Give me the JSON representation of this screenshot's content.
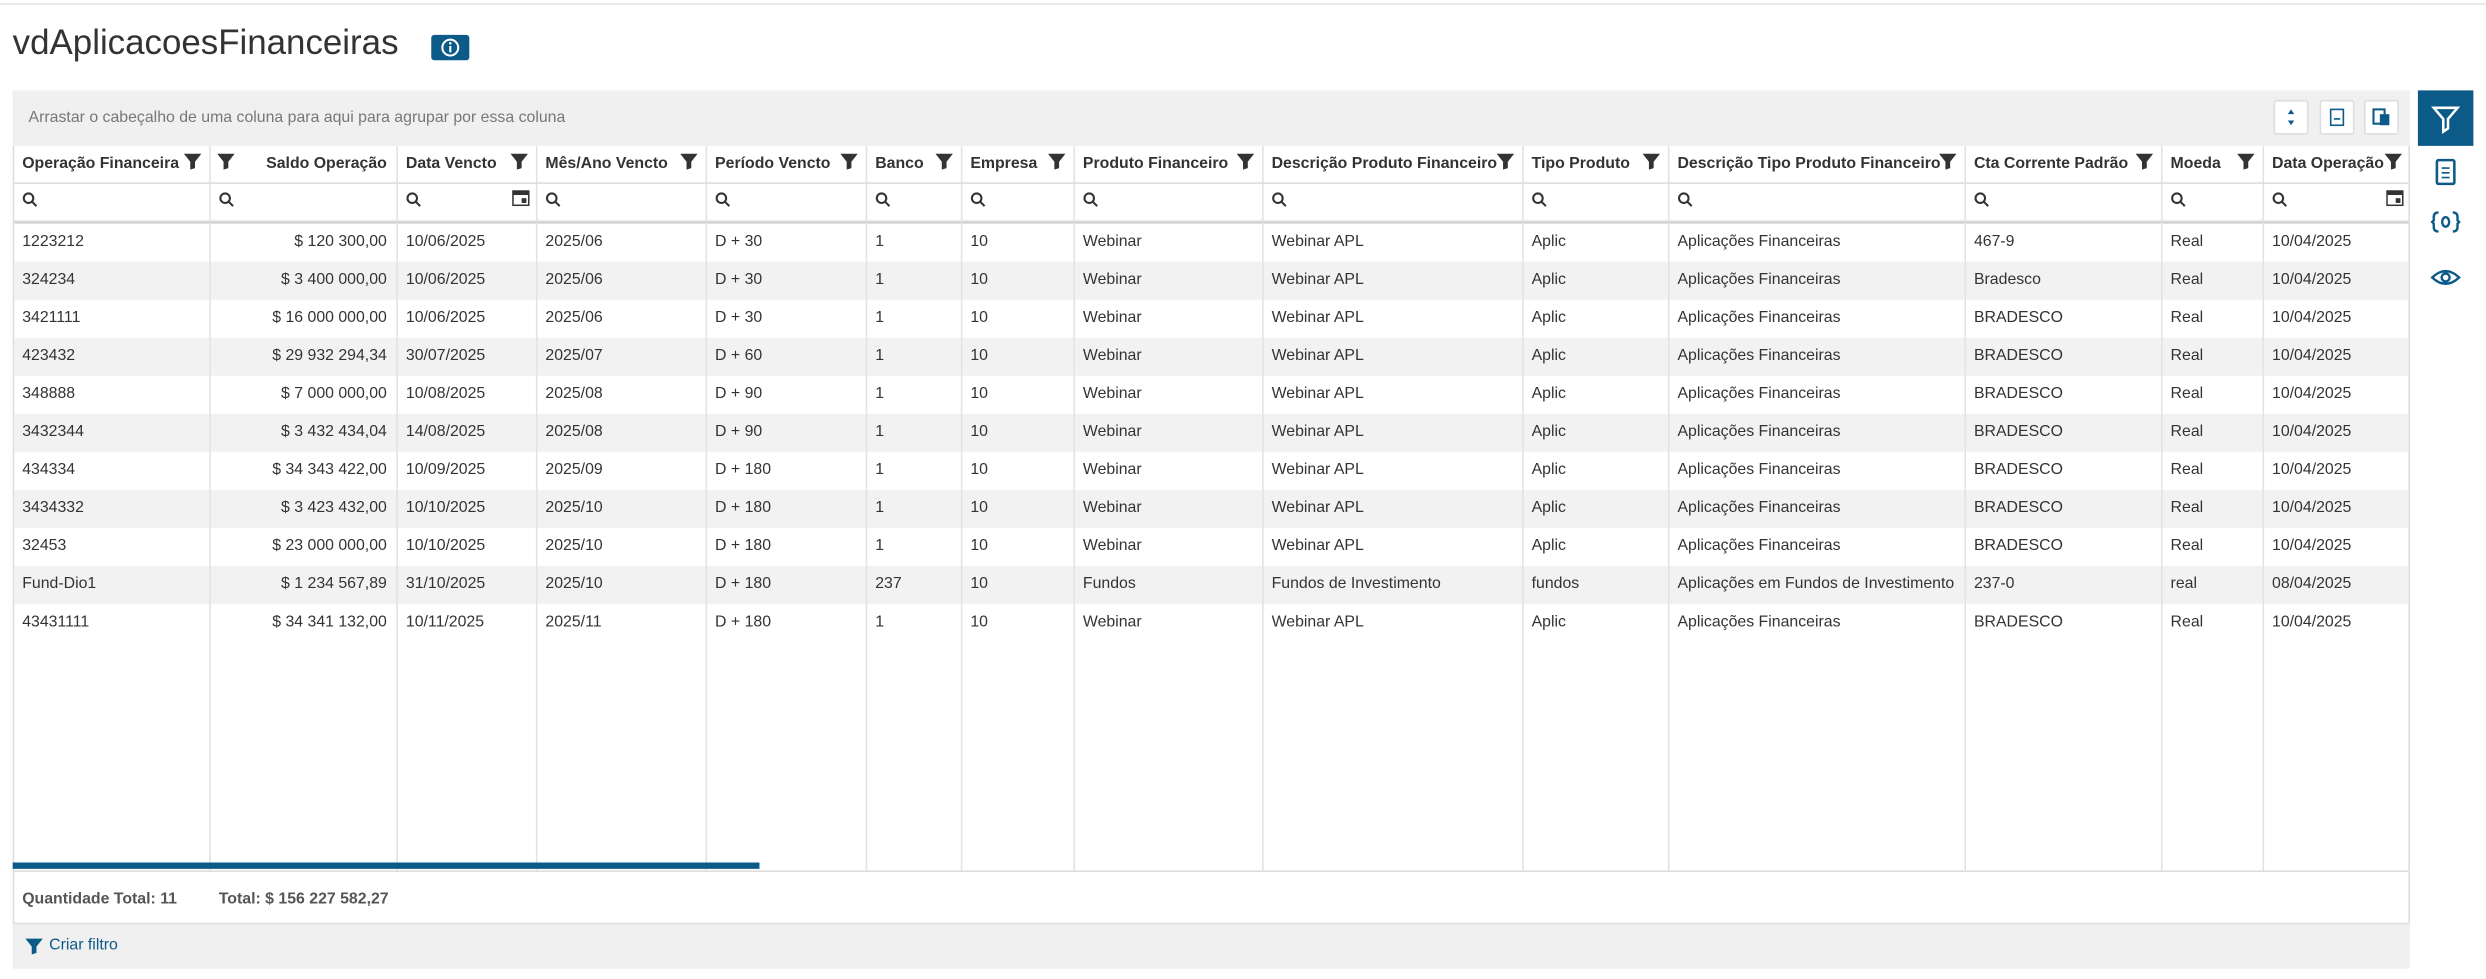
{
  "header": {
    "title": "vdAplicacoesFinanceiras"
  },
  "group_panel": {
    "text": "Arrastar o cabeçalho de uma coluna para aqui para agrupar por essa coluna"
  },
  "table": {
    "columns": [
      "Operação Financeira",
      "Saldo Operação",
      "Data Vencto",
      "Mês/Ano Vencto",
      "Período Vencto",
      "Banco",
      "Empresa",
      "Produto Financeiro",
      "Descrição Produto Financeiro",
      "Tipo Produto",
      "Descrição Tipo Produto Financeiro",
      "Cta Corrente Padrão",
      "Moeda",
      "Data Operação"
    ],
    "rows": [
      [
        "1223212",
        "$ 120 300,00",
        "10/06/2025",
        "2025/06",
        "D + 30",
        "1",
        "10",
        "Webinar",
        "Webinar APL",
        "Aplic",
        "Aplicações Financeiras",
        "467-9",
        "Real",
        "10/04/2025"
      ],
      [
        "324234",
        "$ 3 400 000,00",
        "10/06/2025",
        "2025/06",
        "D + 30",
        "1",
        "10",
        "Webinar",
        "Webinar APL",
        "Aplic",
        "Aplicações Financeiras",
        "Bradesco",
        "Real",
        "10/04/2025"
      ],
      [
        "3421111",
        "$ 16 000 000,00",
        "10/06/2025",
        "2025/06",
        "D + 30",
        "1",
        "10",
        "Webinar",
        "Webinar APL",
        "Aplic",
        "Aplicações Financeiras",
        "BRADESCO",
        "Real",
        "10/04/2025"
      ],
      [
        "423432",
        "$ 29 932 294,34",
        "30/07/2025",
        "2025/07",
        "D + 60",
        "1",
        "10",
        "Webinar",
        "Webinar APL",
        "Aplic",
        "Aplicações Financeiras",
        "BRADESCO",
        "Real",
        "10/04/2025"
      ],
      [
        "348888",
        "$ 7 000 000,00",
        "10/08/2025",
        "2025/08",
        "D + 90",
        "1",
        "10",
        "Webinar",
        "Webinar APL",
        "Aplic",
        "Aplicações Financeiras",
        "BRADESCO",
        "Real",
        "10/04/2025"
      ],
      [
        "3432344",
        "$ 3 432 434,04",
        "14/08/2025",
        "2025/08",
        "D + 90",
        "1",
        "10",
        "Webinar",
        "Webinar APL",
        "Aplic",
        "Aplicações Financeiras",
        "BRADESCO",
        "Real",
        "10/04/2025"
      ],
      [
        "434334",
        "$ 34 343 422,00",
        "10/09/2025",
        "2025/09",
        "D + 180",
        "1",
        "10",
        "Webinar",
        "Webinar APL",
        "Aplic",
        "Aplicações Financeiras",
        "BRADESCO",
        "Real",
        "10/04/2025"
      ],
      [
        "3434332",
        "$ 3 423 432,00",
        "10/10/2025",
        "2025/10",
        "D + 180",
        "1",
        "10",
        "Webinar",
        "Webinar APL",
        "Aplic",
        "Aplicações Financeiras",
        "BRADESCO",
        "Real",
        "10/04/2025"
      ],
      [
        "32453",
        "$ 23 000 000,00",
        "10/10/2025",
        "2025/10",
        "D + 180",
        "1",
        "10",
        "Webinar",
        "Webinar APL",
        "Aplic",
        "Aplicações Financeiras",
        "BRADESCO",
        "Real",
        "10/04/2025"
      ],
      [
        "Fund-Dio1",
        "$ 1 234 567,89",
        "31/10/2025",
        "2025/10",
        "D + 180",
        "237",
        "10",
        "Fundos",
        "Fundos de Investimento",
        "fundos",
        "Aplicações em Fundos de Investimento",
        "237-0",
        "real",
        "08/04/2025"
      ],
      [
        "43431111",
        "$ 34 341 132,00",
        "10/11/2025",
        "2025/11",
        "D + 180",
        "1",
        "10",
        "Webinar",
        "Webinar APL",
        "Aplic",
        "Aplicações Financeiras",
        "BRADESCO",
        "Real",
        "10/04/2025"
      ]
    ]
  },
  "footer": {
    "count": "Quantidade Total: 11",
    "total": "Total: $ 156 227 582,27"
  },
  "filter_bar": {
    "text": "Criar filtro"
  }
}
